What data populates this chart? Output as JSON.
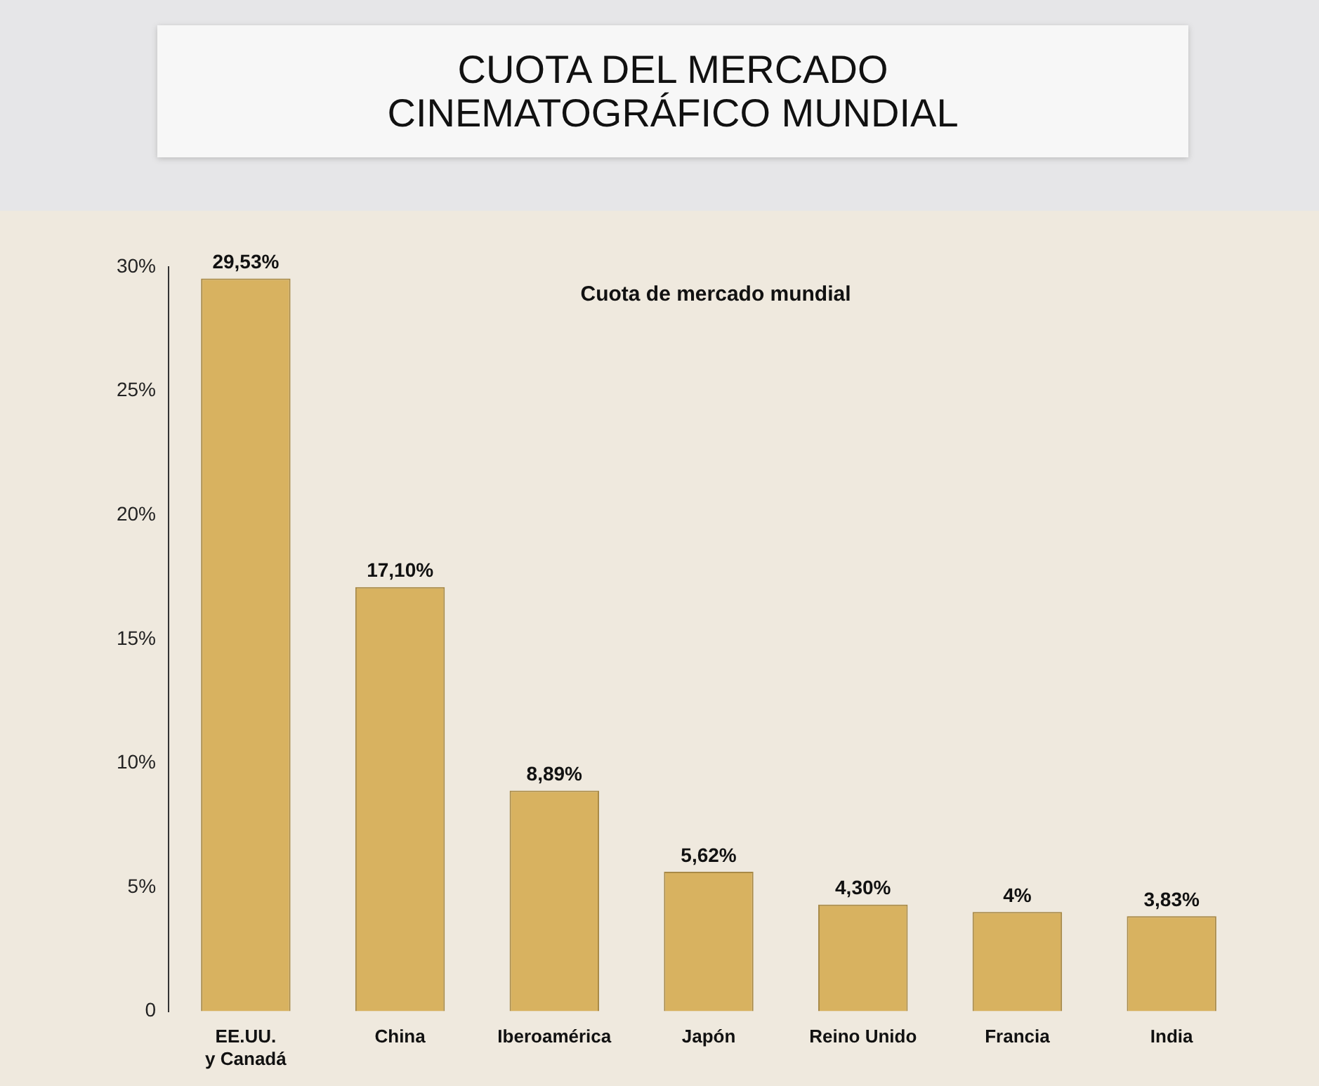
{
  "chart_data": {
    "type": "bar",
    "title": "CUOTA DEL MERCADO CINEMATOGRÁFICO MUNDIAL",
    "subtitle": "Cuota de mercado mundial",
    "categories": [
      "EE.UU. y Canadá",
      "China",
      "Iberoamérica",
      "Japón",
      "Reino Unido",
      "Francia",
      "India"
    ],
    "values": [
      29.53,
      17.1,
      8.89,
      5.62,
      4.3,
      4,
      3.83
    ],
    "value_labels": [
      "29,53%",
      "17,10%",
      "8,89%",
      "5,62%",
      "4,30%",
      "4%",
      "3,83%"
    ],
    "color": "#d8b260",
    "ylim": [
      0,
      30
    ],
    "yticks": [
      {
        "value": 0,
        "label": "0"
      },
      {
        "value": 5,
        "label": "5%"
      },
      {
        "value": 10,
        "label": "10%"
      },
      {
        "value": 15,
        "label": "15%"
      },
      {
        "value": 20,
        "label": "20%"
      },
      {
        "value": 25,
        "label": "25%"
      },
      {
        "value": 30,
        "label": "30%"
      }
    ],
    "grid": false,
    "legend": false
  }
}
